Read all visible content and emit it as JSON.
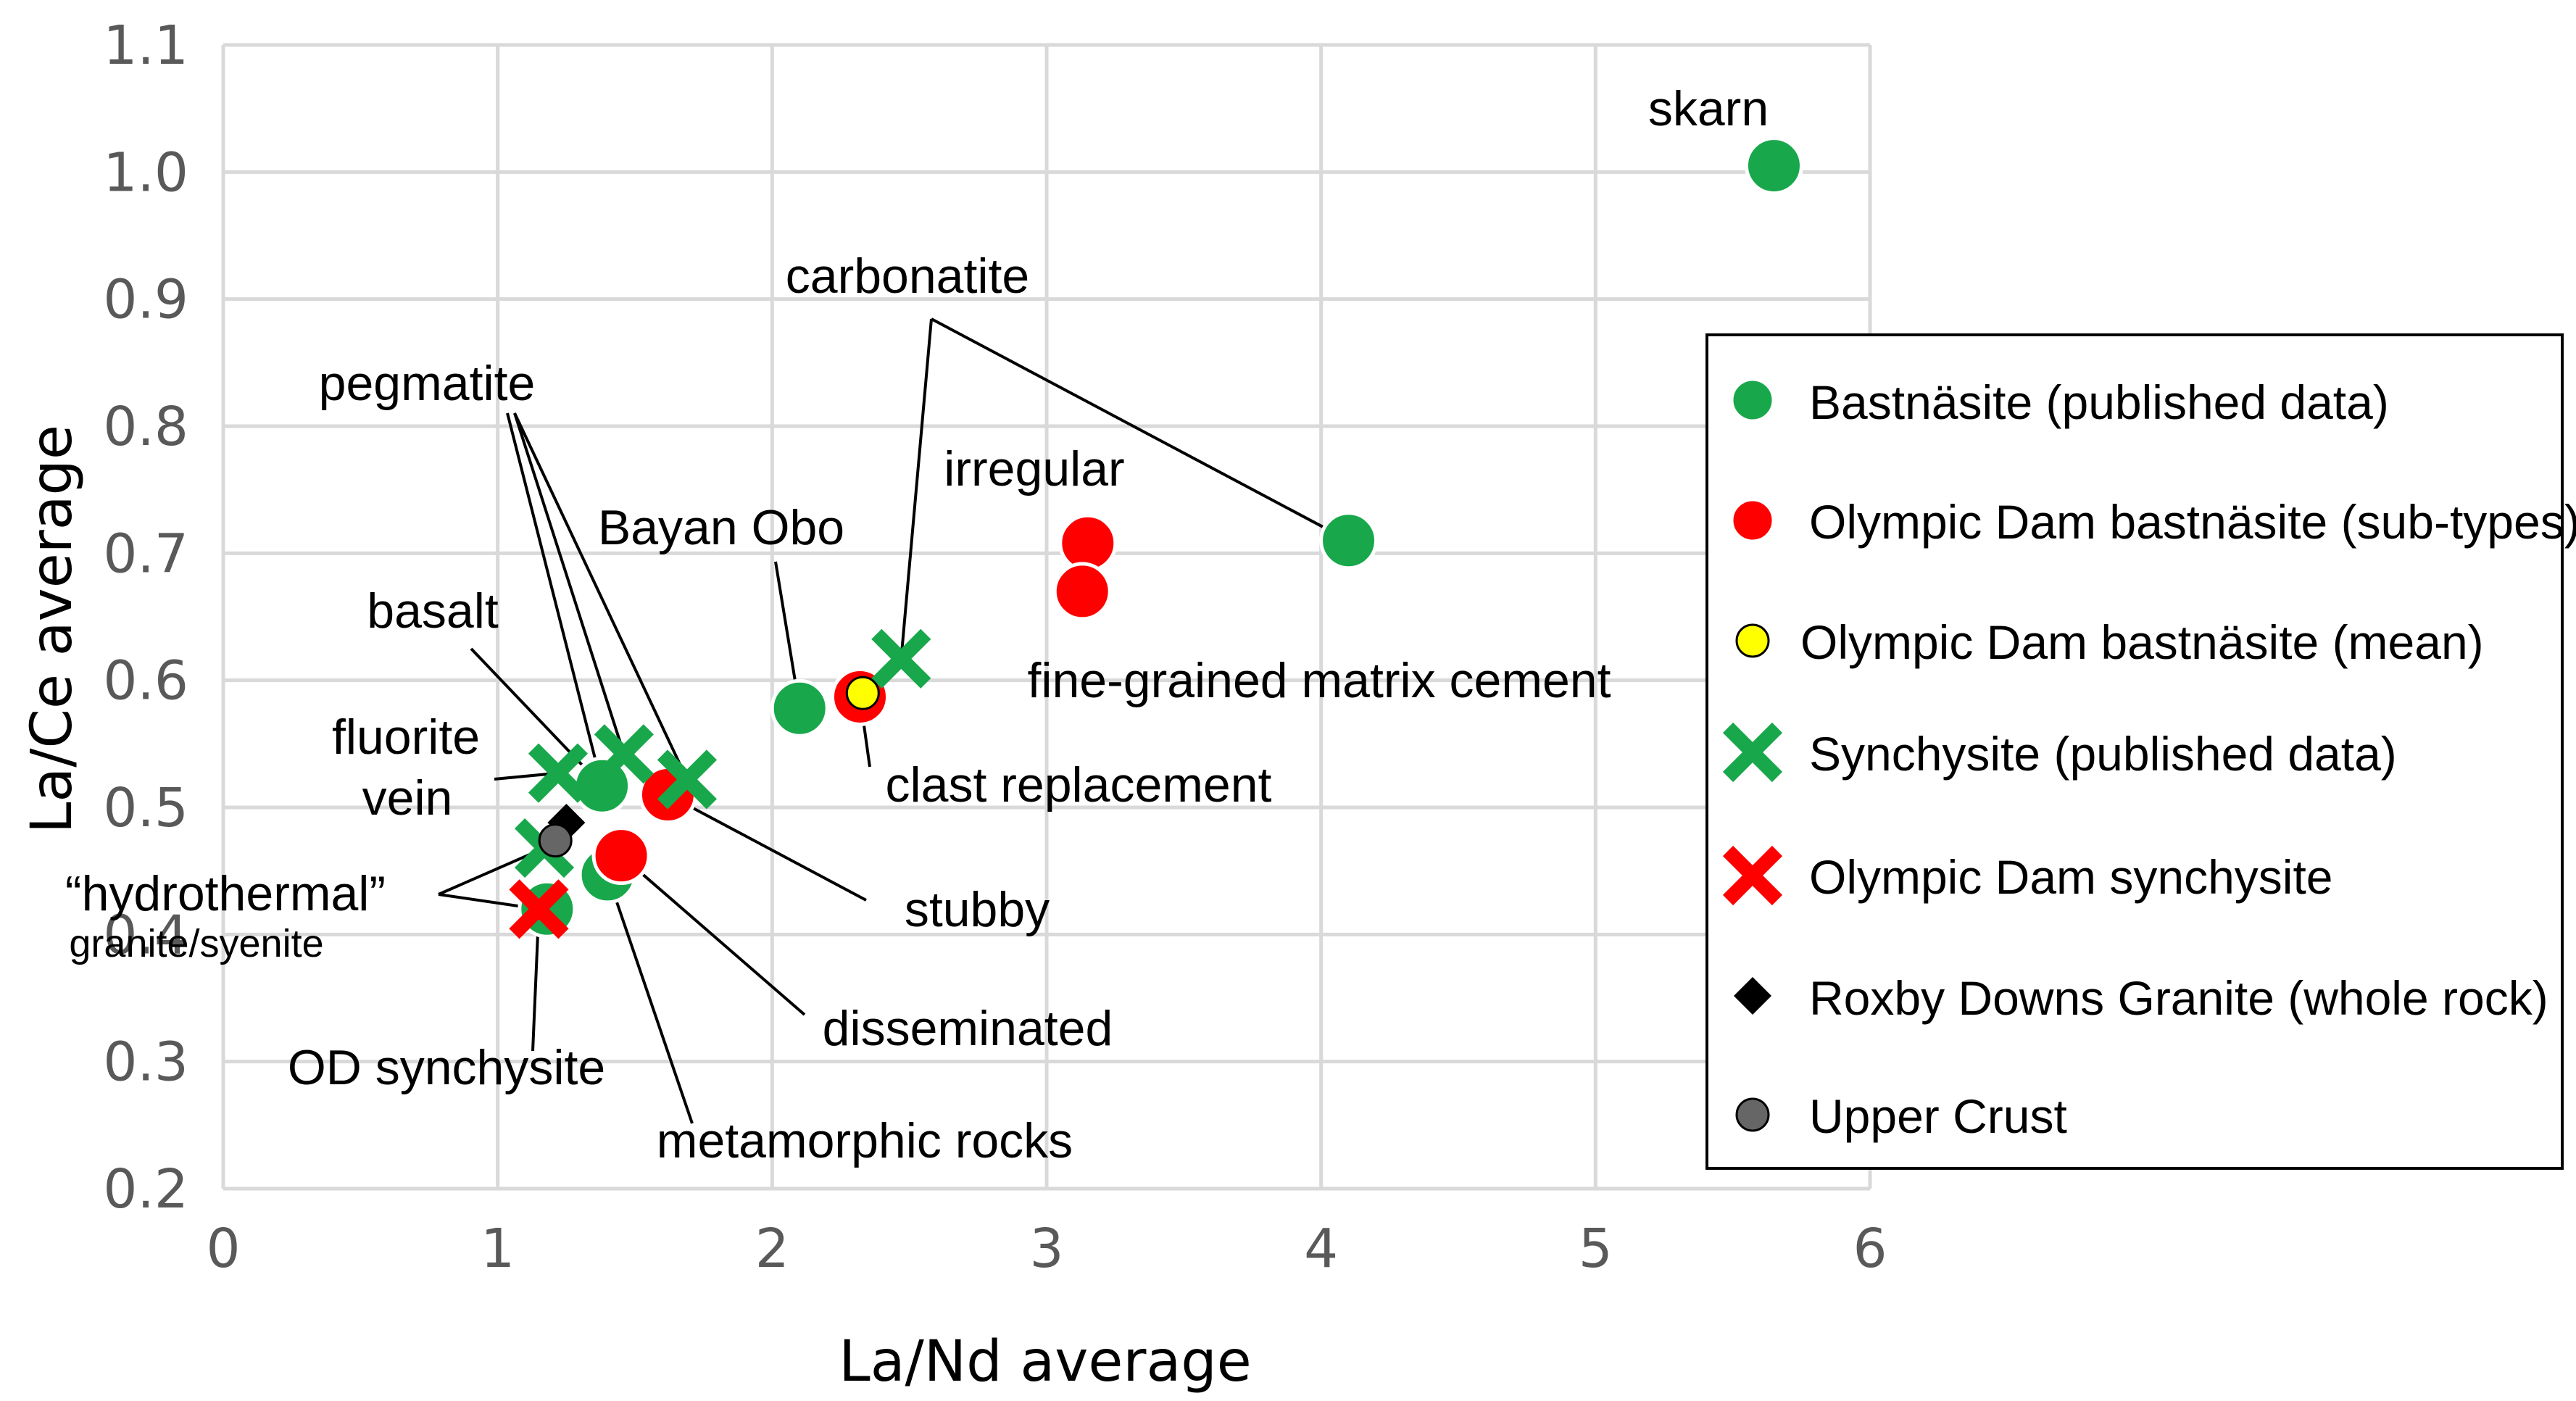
{
  "chart_data": {
    "type": "scatter",
    "title": "",
    "xlabel": "La/Nd average",
    "ylabel": "La/Ce average",
    "xlim": [
      0,
      6
    ],
    "ylim": [
      0.2,
      1.1
    ],
    "x_ticks": [
      "0",
      "1",
      "2",
      "3",
      "4",
      "5",
      "6"
    ],
    "y_ticks": [
      "0.2",
      "0.3",
      "0.4",
      "0.5",
      "0.6",
      "0.7",
      "0.8",
      "0.9",
      "1.0",
      "1.1"
    ],
    "grid": true,
    "legend_position": "right",
    "series": [
      {
        "name": "Bastnäsite (published data)",
        "marker": "circle",
        "color": "#18a84b",
        "points": [
          {
            "x": 5.65,
            "y": 1.005
          },
          {
            "x": 4.1,
            "y": 0.71
          },
          {
            "x": 2.1,
            "y": 0.578
          },
          {
            "x": 1.38,
            "y": 0.517
          },
          {
            "x": 1.4,
            "y": 0.447
          },
          {
            "x": 1.18,
            "y": 0.42
          }
        ]
      },
      {
        "name": "Olympic Dam bastnäsite (sub-types)",
        "marker": "circle",
        "color": "#ff0000",
        "points": [
          {
            "x": 3.15,
            "y": 0.708
          },
          {
            "x": 3.13,
            "y": 0.67
          },
          {
            "x": 2.32,
            "y": 0.587
          },
          {
            "x": 1.62,
            "y": 0.51
          },
          {
            "x": 1.45,
            "y": 0.462
          }
        ]
      },
      {
        "name": "Olympic Dam bastnäsite (mean)",
        "marker": "circle",
        "color": "#ffff00",
        "points": [
          {
            "x": 2.33,
            "y": 0.59
          }
        ]
      },
      {
        "name": "Synchysite (published data)",
        "marker": "x",
        "color": "#18a84b",
        "points": [
          {
            "x": 2.47,
            "y": 0.617
          },
          {
            "x": 1.69,
            "y": 0.522
          },
          {
            "x": 1.46,
            "y": 0.542
          },
          {
            "x": 1.22,
            "y": 0.527
          },
          {
            "x": 1.17,
            "y": 0.468
          }
        ]
      },
      {
        "name": "Olympic Dam synchysite",
        "marker": "x",
        "color": "#ff0000",
        "points": [
          {
            "x": 1.15,
            "y": 0.42
          }
        ]
      },
      {
        "name": "Roxby Downs Granite (whole rock)",
        "marker": "diamond",
        "color": "#000000",
        "points": [
          {
            "x": 1.25,
            "y": 0.488
          }
        ]
      },
      {
        "name": "Upper Crust",
        "marker": "circle",
        "color": "#666666",
        "points": [
          {
            "x": 1.21,
            "y": 0.474
          }
        ]
      }
    ],
    "annotations": [
      {
        "text": "skarn",
        "target": [
          5.65,
          1.005
        ]
      },
      {
        "text": "carbonatite",
        "target": [
          4.1,
          0.71
        ]
      },
      {
        "text": "pegmatite",
        "target": [
          1.46,
          0.542
        ]
      },
      {
        "text": "irregular",
        "target": [
          3.15,
          0.708
        ]
      },
      {
        "text": "Bayan Obo",
        "target": [
          2.1,
          0.578
        ]
      },
      {
        "text": "fine-grained matrix cement",
        "target": [
          3.13,
          0.67
        ]
      },
      {
        "text": "basalt",
        "target": [
          1.38,
          0.517
        ]
      },
      {
        "text": "clast replacement",
        "target": [
          2.32,
          0.587
        ]
      },
      {
        "text": "fluorite",
        "target": [
          1.22,
          0.527
        ]
      },
      {
        "text": "vein",
        "target": [
          1.22,
          0.527
        ]
      },
      {
        "text": "“hydrothermal”",
        "target": [
          1.17,
          0.468
        ]
      },
      {
        "text": "granite/syenite",
        "target": [
          1.17,
          0.468
        ]
      },
      {
        "text": "stubby",
        "target": [
          1.62,
          0.51
        ]
      },
      {
        "text": "disseminated",
        "target": [
          1.45,
          0.462
        ]
      },
      {
        "text": "OD synchysite",
        "target": [
          1.15,
          0.42
        ]
      },
      {
        "text": "metamorphic rocks",
        "target": [
          1.4,
          0.447
        ]
      }
    ]
  }
}
